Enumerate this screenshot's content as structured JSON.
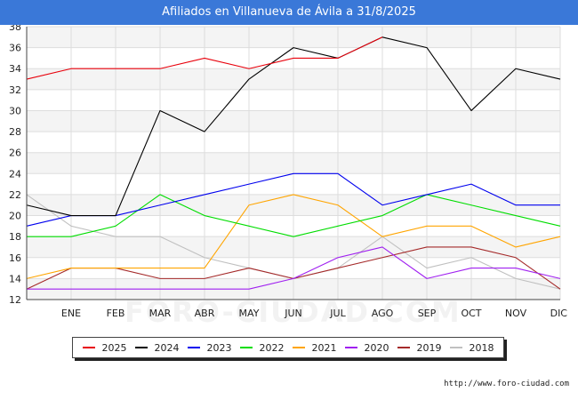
{
  "header": {
    "title": "Afiliados en Villanueva de Ávila a 31/8/2025"
  },
  "footer": {
    "source": "http://www.foro-ciudad.com",
    "watermark": "FORO-CIUDAD.COM"
  },
  "colors": {
    "title_bar": "#3a78d8",
    "plot_band": "#f4f4f4",
    "grid": "#dddddd"
  },
  "chart_data": {
    "type": "line",
    "title": "Afiliados en Villanueva de Ávila a 31/8/2025",
    "categories": [
      "",
      "ENE",
      "FEB",
      "MAR",
      "ABR",
      "MAY",
      "JUN",
      "JUL",
      "AGO",
      "SEP",
      "OCT",
      "NOV",
      "DIC"
    ],
    "ylim": [
      12,
      38
    ],
    "yticks": [
      12,
      14,
      16,
      18,
      20,
      22,
      24,
      26,
      28,
      30,
      32,
      34,
      36,
      38
    ],
    "grid": true,
    "legend_position": "bottom",
    "series": [
      {
        "name": "2025",
        "color": "#e8000b",
        "values": [
          33,
          34,
          34,
          34,
          35,
          34,
          35,
          35,
          37,
          null,
          null,
          null,
          null
        ]
      },
      {
        "name": "2024",
        "color": "#000000",
        "values": [
          21,
          20,
          20,
          30,
          28,
          33,
          36,
          35,
          37,
          36,
          30,
          34,
          33
        ]
      },
      {
        "name": "2023",
        "color": "#0000ee",
        "values": [
          19,
          20,
          20,
          21,
          22,
          23,
          24,
          24,
          21,
          22,
          23,
          21,
          21
        ]
      },
      {
        "name": "2022",
        "color": "#00dd00",
        "values": [
          18,
          18,
          19,
          22,
          20,
          19,
          18,
          19,
          20,
          22,
          21,
          20,
          19
        ]
      },
      {
        "name": "2021",
        "color": "#ffa500",
        "values": [
          14,
          15,
          15,
          15,
          15,
          21,
          22,
          21,
          18,
          19,
          19,
          17,
          18
        ]
      },
      {
        "name": "2020",
        "color": "#a020f0",
        "values": [
          13,
          13,
          13,
          13,
          13,
          13,
          14,
          16,
          17,
          14,
          15,
          15,
          14
        ]
      },
      {
        "name": "2019",
        "color": "#a52a2a",
        "values": [
          13,
          15,
          15,
          14,
          14,
          15,
          14,
          15,
          16,
          17,
          17,
          16,
          13
        ]
      },
      {
        "name": "2018",
        "color": "#c0c0c0",
        "values": [
          22,
          19,
          18,
          18,
          16,
          15,
          14,
          15,
          18,
          15,
          16,
          14,
          13
        ]
      }
    ]
  }
}
